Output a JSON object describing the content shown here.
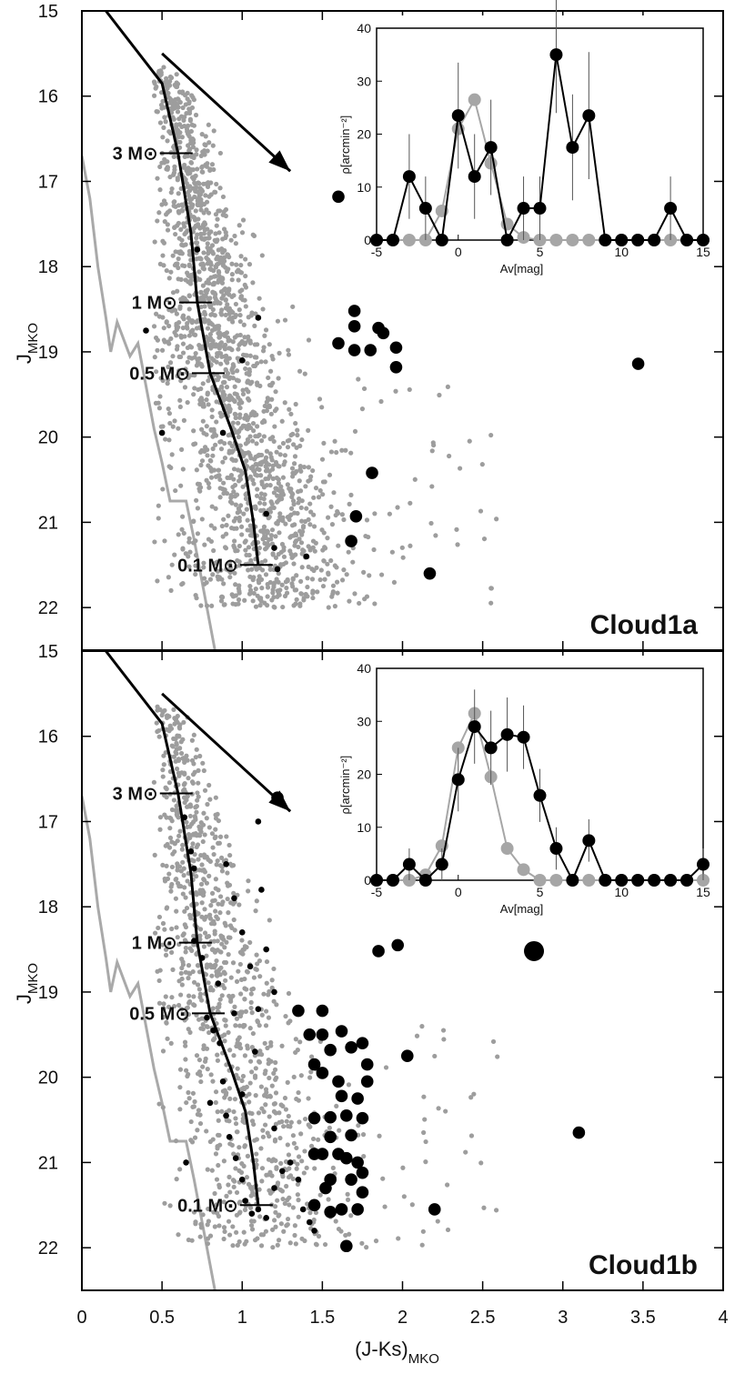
{
  "chart_data": [
    {
      "type": "scatter",
      "panel_label": "Cloud1a",
      "xlim": [
        0,
        4
      ],
      "ylim": [
        15,
        22.5
      ],
      "y_inverted": true,
      "ylabel_main": "J",
      "ylabel_sub": "MKO",
      "x_ticks": [
        0,
        0.5,
        1,
        1.5,
        2,
        2.5,
        3,
        3.5,
        4
      ],
      "x_tick_labels": [
        "0",
        "0.5",
        "1",
        "1.5",
        "2",
        "2.5",
        "3",
        "3.5",
        "4"
      ],
      "y_ticks": [
        15,
        16,
        17,
        18,
        19,
        20,
        21,
        22
      ],
      "y_tick_labels": [
        "15",
        "16",
        "17",
        "18",
        "19",
        "20",
        "21",
        "22"
      ],
      "isochrone": [
        [
          0.15,
          15
        ],
        [
          0.5,
          15.85
        ],
        [
          0.6,
          16.67
        ],
        [
          0.68,
          17.6
        ],
        [
          0.72,
          18.42
        ],
        [
          0.8,
          19.25
        ],
        [
          0.93,
          19.9
        ],
        [
          1.02,
          20.4
        ],
        [
          1.07,
          21
        ],
        [
          1.1,
          21.5
        ]
      ],
      "mass_marks": [
        {
          "label": "3 M⊙",
          "x": 0.6,
          "y": 16.67
        },
        {
          "label": "1 M⊙",
          "x": 0.72,
          "y": 18.42
        },
        {
          "label": "0.5 M⊙",
          "x": 0.8,
          "y": 19.25
        },
        {
          "label": "0.1 M⊙",
          "x": 1.1,
          "y": 21.5
        }
      ],
      "reddening_vector": {
        "x1": 0.5,
        "y1": 15.5,
        "x2": 1.3,
        "y2": 16.88
      },
      "grey_limit_curve": [
        [
          0,
          16.7
        ],
        [
          0.05,
          17.2
        ],
        [
          0.1,
          18
        ],
        [
          0.15,
          18.6
        ],
        [
          0.18,
          19
        ],
        [
          0.22,
          18.65
        ],
        [
          0.3,
          19.05
        ],
        [
          0.35,
          18.9
        ],
        [
          0.4,
          19.4
        ],
        [
          0.45,
          19.9
        ],
        [
          0.5,
          20.3
        ],
        [
          0.55,
          20.75
        ],
        [
          0.65,
          20.75
        ],
        [
          0.7,
          21.2
        ],
        [
          0.75,
          21.7
        ],
        [
          0.8,
          22.2
        ],
        [
          0.83,
          22.5
        ]
      ],
      "field_stars_density": {
        "count": 1850,
        "x_range": [
          0.45,
          2.6
        ],
        "y_range": [
          15.65,
          22.0
        ]
      },
      "black_small_points": [
        [
          0.4,
          18.75
        ],
        [
          0.5,
          19.95
        ],
        [
          0.72,
          17.8
        ],
        [
          0.88,
          19.95
        ],
        [
          1.0,
          19.1
        ],
        [
          1.1,
          18.6
        ],
        [
          1.15,
          20.9
        ],
        [
          1.2,
          21.3
        ],
        [
          1.22,
          21.55
        ],
        [
          1.4,
          21.4
        ]
      ],
      "black_large_points": [
        [
          1.7,
          18.52
        ],
        [
          1.7,
          18.7
        ],
        [
          1.6,
          18.9
        ],
        [
          1.7,
          18.98
        ],
        [
          1.8,
          18.98
        ],
        [
          1.85,
          18.72
        ],
        [
          1.88,
          18.78
        ],
        [
          1.96,
          18.95
        ],
        [
          1.96,
          19.18
        ],
        [
          3.47,
          19.14
        ],
        [
          1.81,
          20.42
        ],
        [
          1.71,
          20.93
        ],
        [
          1.68,
          21.22
        ],
        [
          2.17,
          21.6
        ],
        [
          1.73,
          16.15
        ],
        [
          1.6,
          17.18
        ]
      ],
      "inset": {
        "xlabel": "Av[mag]",
        "ylabel": "ρ[arcmin⁻²]",
        "xlim": [
          -5,
          15
        ],
        "ylim": [
          0,
          40
        ],
        "x_ticks": [
          -5,
          0,
          5,
          10,
          15
        ],
        "x_tick_labels": [
          "-5",
          "0",
          "5",
          "10",
          "15"
        ],
        "y_ticks": [
          0,
          10,
          20,
          30,
          40
        ],
        "y_tick_labels": [
          "0",
          "10",
          "20",
          "30",
          "40"
        ],
        "series": [
          {
            "color": "#a6a6a6",
            "x": [
              -5,
              -4,
              -3,
              -2,
              -1,
              0,
              1,
              2,
              3,
              4,
              5,
              6,
              7,
              8,
              9,
              10,
              11,
              12,
              13,
              14,
              15
            ],
            "y": [
              0,
              0,
              0,
              0,
              5.5,
              21,
              26.5,
              14.5,
              3,
              0.5,
              0,
              0,
              0,
              0,
              0,
              0,
              0,
              0,
              0,
              0,
              0
            ]
          },
          {
            "color": "#000000",
            "x": [
              -5,
              -4,
              -3,
              -2,
              -1,
              0,
              1,
              2,
              3,
              4,
              5,
              6,
              7,
              8,
              9,
              10,
              11,
              12,
              13,
              14,
              15
            ],
            "y": [
              0,
              0,
              12,
              6,
              0,
              23.5,
              12,
              17.5,
              0,
              6,
              6,
              35,
              17.5,
              23.5,
              0,
              0,
              0,
              0,
              6,
              0,
              0
            ],
            "err": [
              0,
              0,
              8,
              6,
              0,
              10,
              8,
              9,
              0,
              6,
              6,
              11,
              10,
              12,
              0,
              0,
              0,
              0,
              6,
              0,
              0
            ]
          }
        ]
      }
    },
    {
      "type": "scatter",
      "panel_label": "Cloud1b",
      "xlim": [
        0,
        4
      ],
      "ylim": [
        15,
        22.5
      ],
      "y_inverted": true,
      "xlabel_main": "(J-Ks)",
      "xlabel_sub": "MKO",
      "ylabel_main": "J",
      "ylabel_sub": "MKO",
      "x_ticks": [
        0,
        0.5,
        1,
        1.5,
        2,
        2.5,
        3,
        3.5,
        4
      ],
      "x_tick_labels": [
        "0",
        "0.5",
        "1",
        "1.5",
        "2",
        "2.5",
        "3",
        "3.5",
        "4"
      ],
      "y_ticks": [
        15,
        16,
        17,
        18,
        19,
        20,
        21,
        22
      ],
      "y_tick_labels": [
        "15",
        "16",
        "17",
        "18",
        "19",
        "20",
        "21",
        "22"
      ],
      "isochrone": [
        [
          0.15,
          15
        ],
        [
          0.5,
          15.85
        ],
        [
          0.6,
          16.67
        ],
        [
          0.68,
          17.6
        ],
        [
          0.72,
          18.42
        ],
        [
          0.8,
          19.25
        ],
        [
          0.93,
          19.9
        ],
        [
          1.02,
          20.4
        ],
        [
          1.07,
          21
        ],
        [
          1.1,
          21.5
        ]
      ],
      "mass_marks": [
        {
          "label": "3 M⊙",
          "x": 0.6,
          "y": 16.67
        },
        {
          "label": "1 M⊙",
          "x": 0.72,
          "y": 18.42
        },
        {
          "label": "0.5 M⊙",
          "x": 0.8,
          "y": 19.25
        },
        {
          "label": "0.1 M⊙",
          "x": 1.1,
          "y": 21.5
        }
      ],
      "reddening_vector": {
        "x1": 0.5,
        "y1": 15.5,
        "x2": 1.3,
        "y2": 16.88
      },
      "grey_limit_curve": [
        [
          0,
          16.7
        ],
        [
          0.05,
          17.2
        ],
        [
          0.1,
          18
        ],
        [
          0.15,
          18.6
        ],
        [
          0.18,
          19
        ],
        [
          0.22,
          18.65
        ],
        [
          0.3,
          19.05
        ],
        [
          0.35,
          18.9
        ],
        [
          0.4,
          19.4
        ],
        [
          0.45,
          19.9
        ],
        [
          0.5,
          20.3
        ],
        [
          0.55,
          20.75
        ],
        [
          0.65,
          20.75
        ],
        [
          0.7,
          21.2
        ],
        [
          0.75,
          21.7
        ],
        [
          0.8,
          22.2
        ],
        [
          0.83,
          22.5
        ]
      ],
      "field_stars_density": {
        "count": 1150,
        "x_range": [
          0.45,
          2.6
        ],
        "y_range": [
          15.65,
          22.0
        ]
      },
      "black_small_points": [
        [
          0.64,
          16.95
        ],
        [
          0.68,
          17.35
        ],
        [
          0.7,
          17.55
        ],
        [
          0.7,
          18.4
        ],
        [
          0.75,
          18.6
        ],
        [
          0.78,
          19.3
        ],
        [
          0.82,
          19.45
        ],
        [
          0.86,
          19.6
        ],
        [
          0.88,
          20.05
        ],
        [
          0.9,
          20.45
        ],
        [
          0.92,
          20.7
        ],
        [
          0.96,
          20.95
        ],
        [
          1.0,
          21.2
        ],
        [
          1.02,
          21.45
        ],
        [
          1.06,
          21.6
        ],
        [
          1.1,
          21.55
        ],
        [
          1.15,
          21.65
        ],
        [
          1.2,
          21.3
        ],
        [
          1.25,
          21.1
        ],
        [
          1.3,
          21.0
        ],
        [
          1.35,
          21.2
        ],
        [
          1.38,
          21.55
        ],
        [
          1.42,
          21.7
        ],
        [
          1.45,
          21.8
        ],
        [
          0.9,
          17.5
        ],
        [
          0.95,
          17.9
        ],
        [
          1.0,
          18.3
        ],
        [
          1.05,
          18.7
        ],
        [
          1.1,
          19.2
        ],
        [
          1.08,
          19.7
        ],
        [
          1.1,
          17.0
        ],
        [
          1.15,
          18.5
        ],
        [
          1.2,
          19.0
        ],
        [
          0.65,
          21.0
        ],
        [
          0.95,
          19.25
        ],
        [
          1.0,
          20.2
        ],
        [
          1.12,
          17.8
        ],
        [
          0.85,
          18.9
        ],
        [
          0.8,
          20.3
        ],
        [
          1.2,
          20.6
        ]
      ],
      "black_large_points": [
        [
          1.22,
          16.72
        ],
        [
          2.82,
          18.52
        ],
        [
          1.85,
          18.52
        ],
        [
          1.97,
          18.45
        ],
        [
          2.03,
          19.75
        ],
        [
          3.1,
          20.65
        ],
        [
          2.2,
          21.55
        ],
        [
          1.65,
          21.98
        ],
        [
          1.35,
          19.22
        ],
        [
          1.5,
          19.22
        ],
        [
          1.5,
          19.5
        ],
        [
          1.62,
          19.46
        ],
        [
          1.42,
          19.5
        ],
        [
          1.55,
          19.68
        ],
        [
          1.45,
          19.85
        ],
        [
          1.5,
          19.95
        ],
        [
          1.68,
          19.65
        ],
        [
          1.75,
          19.6
        ],
        [
          1.78,
          19.85
        ],
        [
          1.78,
          20.05
        ],
        [
          1.6,
          20.05
        ],
        [
          1.62,
          20.22
        ],
        [
          1.72,
          20.25
        ],
        [
          1.55,
          20.47
        ],
        [
          1.45,
          20.48
        ],
        [
          1.65,
          20.45
        ],
        [
          1.75,
          20.48
        ],
        [
          1.68,
          20.68
        ],
        [
          1.55,
          20.7
        ],
        [
          1.45,
          20.9
        ],
        [
          1.5,
          20.9
        ],
        [
          1.6,
          20.9
        ],
        [
          1.65,
          20.95
        ],
        [
          1.72,
          21.0
        ],
        [
          1.75,
          21.12
        ],
        [
          1.55,
          21.2
        ],
        [
          1.68,
          21.2
        ],
        [
          1.75,
          21.35
        ],
        [
          1.45,
          21.5
        ],
        [
          1.55,
          21.58
        ],
        [
          1.62,
          21.55
        ],
        [
          1.72,
          21.55
        ],
        [
          1.52,
          21.3
        ]
      ],
      "inset": {
        "xlabel": "Av[mag]",
        "ylabel": "ρ[arcmin⁻²]",
        "xlim": [
          -5,
          15
        ],
        "ylim": [
          0,
          40
        ],
        "x_ticks": [
          -5,
          0,
          5,
          10,
          15
        ],
        "x_tick_labels": [
          "-5",
          "0",
          "5",
          "10",
          "15"
        ],
        "y_ticks": [
          0,
          10,
          20,
          30,
          40
        ],
        "y_tick_labels": [
          "0",
          "10",
          "20",
          "30",
          "40"
        ],
        "series": [
          {
            "color": "#a6a6a6",
            "x": [
              -5,
              -4,
              -3,
              -2,
              -1,
              0,
              1,
              2,
              3,
              4,
              5,
              6,
              7,
              8,
              9,
              10,
              11,
              12,
              13,
              14,
              15
            ],
            "y": [
              0,
              0,
              0,
              1,
              6.5,
              25,
              31.5,
              19.5,
              6,
              2,
              0,
              0,
              0,
              0,
              0,
              0,
              0,
              0,
              0,
              0,
              0
            ]
          },
          {
            "color": "#000000",
            "x": [
              -5,
              -4,
              -3,
              -2,
              -1,
              0,
              1,
              2,
              3,
              4,
              5,
              6,
              7,
              8,
              9,
              10,
              11,
              12,
              13,
              14,
              15
            ],
            "y": [
              0,
              0,
              3,
              0,
              3,
              19,
              29,
              25,
              27.5,
              27,
              16,
              6,
              0,
              7.5,
              0,
              0,
              0,
              0,
              0,
              0,
              3
            ],
            "err": [
              0,
              0,
              3,
              0,
              3,
              6,
              7,
              7,
              7,
              6,
              5,
              4,
              0,
              4,
              0,
              0,
              0,
              0,
              0,
              0,
              3
            ]
          }
        ]
      }
    }
  ]
}
